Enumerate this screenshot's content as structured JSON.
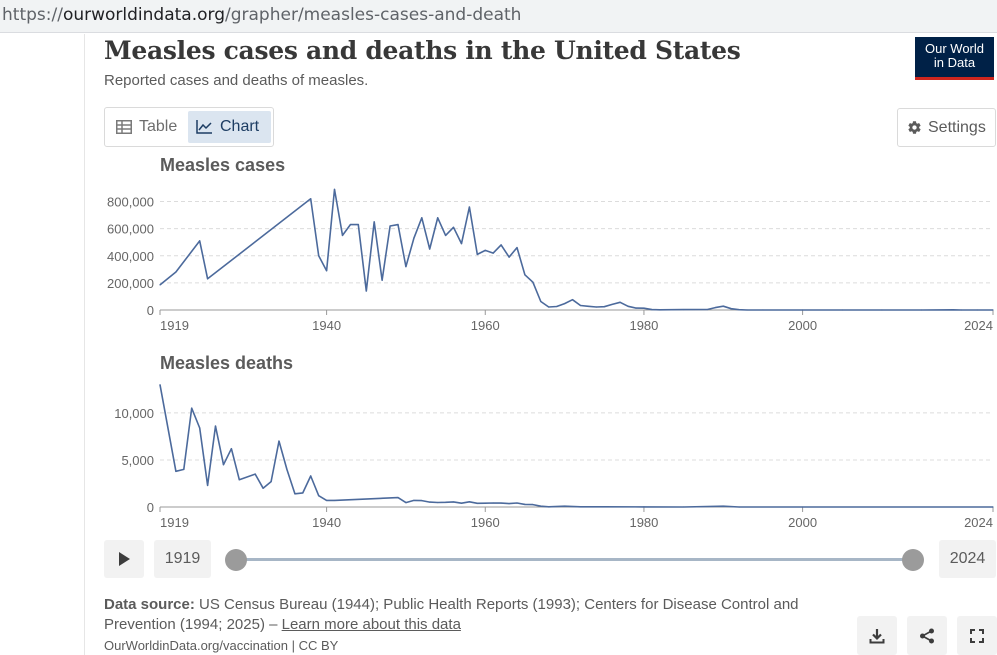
{
  "browser": {
    "url_scheme": "https://",
    "url_host": "ourworldindata.org",
    "url_path": "/grapher/measles-cases-and-death"
  },
  "header": {
    "title": "Measles cases and deaths in the United States",
    "subtitle": "Reported cases and deaths of measles.",
    "logo_line1": "Our World",
    "logo_line2": "in Data"
  },
  "tabs": {
    "table_label": "Table",
    "chart_label": "Chart",
    "active": "Chart"
  },
  "settings_label": "Settings",
  "timeline": {
    "start_year": "1919",
    "end_year": "2024",
    "range_selected": [
      0,
      1
    ]
  },
  "source": {
    "label": "Data source:",
    "text": "US Census Bureau (1944); Public Health Reports (1993); Centers for Disease Control and Prevention (1994; 2025) –",
    "link_text": "Learn more about this data"
  },
  "footer": {
    "text": "OurWorldinData.org/vaccination | CC BY"
  },
  "colors": {
    "line": "#4c6a9c",
    "brand": "#002147",
    "brand_accent": "#ce261e",
    "active_tab": "#dbe5f0"
  },
  "icons": {
    "table": "table-icon",
    "chart": "line-chart-icon",
    "settings": "gear-icon",
    "play": "play-icon",
    "download": "download-icon",
    "share": "share-icon",
    "fullscreen": "fullscreen-icon"
  },
  "chart_data": [
    {
      "type": "line",
      "title": "Measles cases",
      "x_ticks": [
        1919,
        1940,
        1960,
        1980,
        2000,
        2024
      ],
      "y_ticks": [
        0,
        200000,
        400000,
        600000,
        800000
      ],
      "y_tick_labels": [
        "0",
        "200,000",
        "400,000",
        "600,000",
        "800,000"
      ],
      "xlim": [
        1919,
        2024
      ],
      "ylim": [
        0,
        900000
      ],
      "grid": true,
      "x": [
        1919,
        1921,
        1924,
        1925,
        1938,
        1939,
        1940,
        1941,
        1942,
        1943,
        1944,
        1945,
        1946,
        1947,
        1948,
        1949,
        1950,
        1951,
        1952,
        1953,
        1954,
        1955,
        1956,
        1957,
        1958,
        1959,
        1960,
        1961,
        1962,
        1963,
        1964,
        1965,
        1966,
        1967,
        1968,
        1969,
        1970,
        1971,
        1972,
        1973,
        1974,
        1975,
        1976,
        1977,
        1978,
        1979,
        1980,
        1981,
        1982,
        1985,
        1988,
        1989,
        1990,
        1991,
        1992,
        1993,
        1995,
        2000,
        2005,
        2010,
        2015,
        2019,
        2020,
        2022,
        2024
      ],
      "y": [
        185000,
        280000,
        510000,
        230000,
        820000,
        400000,
        290000,
        890000,
        550000,
        630000,
        630000,
        140000,
        650000,
        220000,
        620000,
        630000,
        320000,
        530000,
        680000,
        450000,
        680000,
        550000,
        610000,
        490000,
        760000,
        410000,
        440000,
        420000,
        480000,
        390000,
        460000,
        260000,
        205000,
        63000,
        22000,
        26000,
        47000,
        76000,
        33000,
        27000,
        22000,
        24000,
        41000,
        57000,
        27000,
        14000,
        13500,
        3000,
        1700,
        2800,
        3400,
        18000,
        28000,
        9600,
        2200,
        300,
        300,
        90,
        70,
        60,
        190,
        1300,
        13,
        120,
        280
      ]
    },
    {
      "type": "line",
      "title": "Measles deaths",
      "x_ticks": [
        1919,
        1940,
        1960,
        1980,
        2000,
        2024
      ],
      "y_ticks": [
        0,
        5000,
        10000
      ],
      "y_tick_labels": [
        "0",
        "5,000",
        "10,000"
      ],
      "xlim": [
        1919,
        2024
      ],
      "ylim": [
        0,
        13500
      ],
      "grid": true,
      "x": [
        1919,
        1921,
        1922,
        1923,
        1924,
        1925,
        1926,
        1927,
        1928,
        1929,
        1931,
        1932,
        1933,
        1934,
        1935,
        1936,
        1937,
        1938,
        1939,
        1940,
        1941,
        1949,
        1950,
        1951,
        1952,
        1953,
        1954,
        1955,
        1956,
        1957,
        1958,
        1959,
        1960,
        1961,
        1962,
        1963,
        1964,
        1965,
        1966,
        1967,
        1968,
        1970,
        1972,
        1975,
        1980,
        1985,
        1990,
        1992,
        2000,
        2024
      ],
      "y": [
        13000,
        3800,
        4000,
        10500,
        8400,
        2300,
        8600,
        4500,
        6200,
        2900,
        3500,
        2000,
        2700,
        7000,
        4000,
        1400,
        1500,
        3300,
        1200,
        700,
        700,
        1000,
        470,
        700,
        680,
        520,
        480,
        500,
        540,
        400,
        550,
        390,
        400,
        430,
        410,
        360,
        420,
        280,
        260,
        80,
        24,
        90,
        25,
        20,
        11,
        4,
        89,
        3,
        1,
        0
      ]
    }
  ]
}
